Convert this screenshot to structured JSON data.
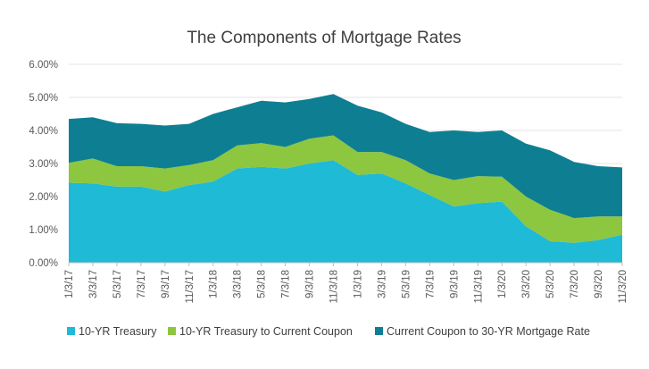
{
  "chart_data": {
    "type": "area",
    "title": "The Components  of Mortgage Rates",
    "xlabel": "",
    "ylabel": "",
    "ylim": [
      0,
      6
    ],
    "y_ticks": [
      "0.00%",
      "1.00%",
      "2.00%",
      "3.00%",
      "4.00%",
      "5.00%",
      "6.00%"
    ],
    "x_tick_labels": [
      "1/3/17",
      "3/3/17",
      "5/3/17",
      "7/3/17",
      "9/3/17",
      "11/3/17",
      "1/3/18",
      "3/3/18",
      "5/3/18",
      "7/3/18",
      "9/3/18",
      "11/3/18",
      "1/3/19",
      "3/3/19",
      "5/3/19",
      "7/3/19",
      "9/3/19",
      "11/3/19",
      "1/3/20",
      "3/3/20",
      "5/3/20",
      "7/3/20",
      "9/3/20",
      "11/3/20"
    ],
    "grid": "horizontal",
    "stacked": true,
    "legend_position": "bottom",
    "x": [
      "1/3/17",
      "3/3/17",
      "5/3/17",
      "7/3/17",
      "9/3/17",
      "11/3/17",
      "1/3/18",
      "3/3/18",
      "5/3/18",
      "7/3/18",
      "9/3/18",
      "11/3/18",
      "1/3/19",
      "3/3/19",
      "5/3/19",
      "7/3/19",
      "9/3/19",
      "11/3/19",
      "1/3/20",
      "3/3/20",
      "5/3/20",
      "7/3/20",
      "9/3/20",
      "11/3/20"
    ],
    "series": [
      {
        "name": "10-YR Treasury",
        "color": "#1fbad6",
        "values": [
          2.42,
          2.4,
          2.3,
          2.3,
          2.15,
          2.35,
          2.45,
          2.85,
          2.9,
          2.85,
          3.0,
          3.1,
          2.65,
          2.7,
          2.4,
          2.05,
          1.7,
          1.8,
          1.85,
          1.1,
          0.65,
          0.6,
          0.68,
          0.85
        ]
      },
      {
        "name": "10-YR Treasury to Current Coupon",
        "color": "#8dc63f",
        "values": [
          0.6,
          0.75,
          0.62,
          0.62,
          0.7,
          0.6,
          0.65,
          0.7,
          0.72,
          0.65,
          0.75,
          0.75,
          0.7,
          0.65,
          0.7,
          0.65,
          0.8,
          0.82,
          0.75,
          0.9,
          0.95,
          0.75,
          0.72,
          0.55
        ]
      },
      {
        "name": "Current Coupon to 30-YR Mortgage Rate",
        "color": "#0e7f92",
        "values": [
          1.33,
          1.25,
          1.3,
          1.28,
          1.3,
          1.25,
          1.4,
          1.15,
          1.28,
          1.35,
          1.2,
          1.25,
          1.4,
          1.2,
          1.1,
          1.25,
          1.5,
          1.33,
          1.4,
          1.6,
          1.8,
          1.7,
          1.52,
          1.48
        ]
      }
    ]
  }
}
